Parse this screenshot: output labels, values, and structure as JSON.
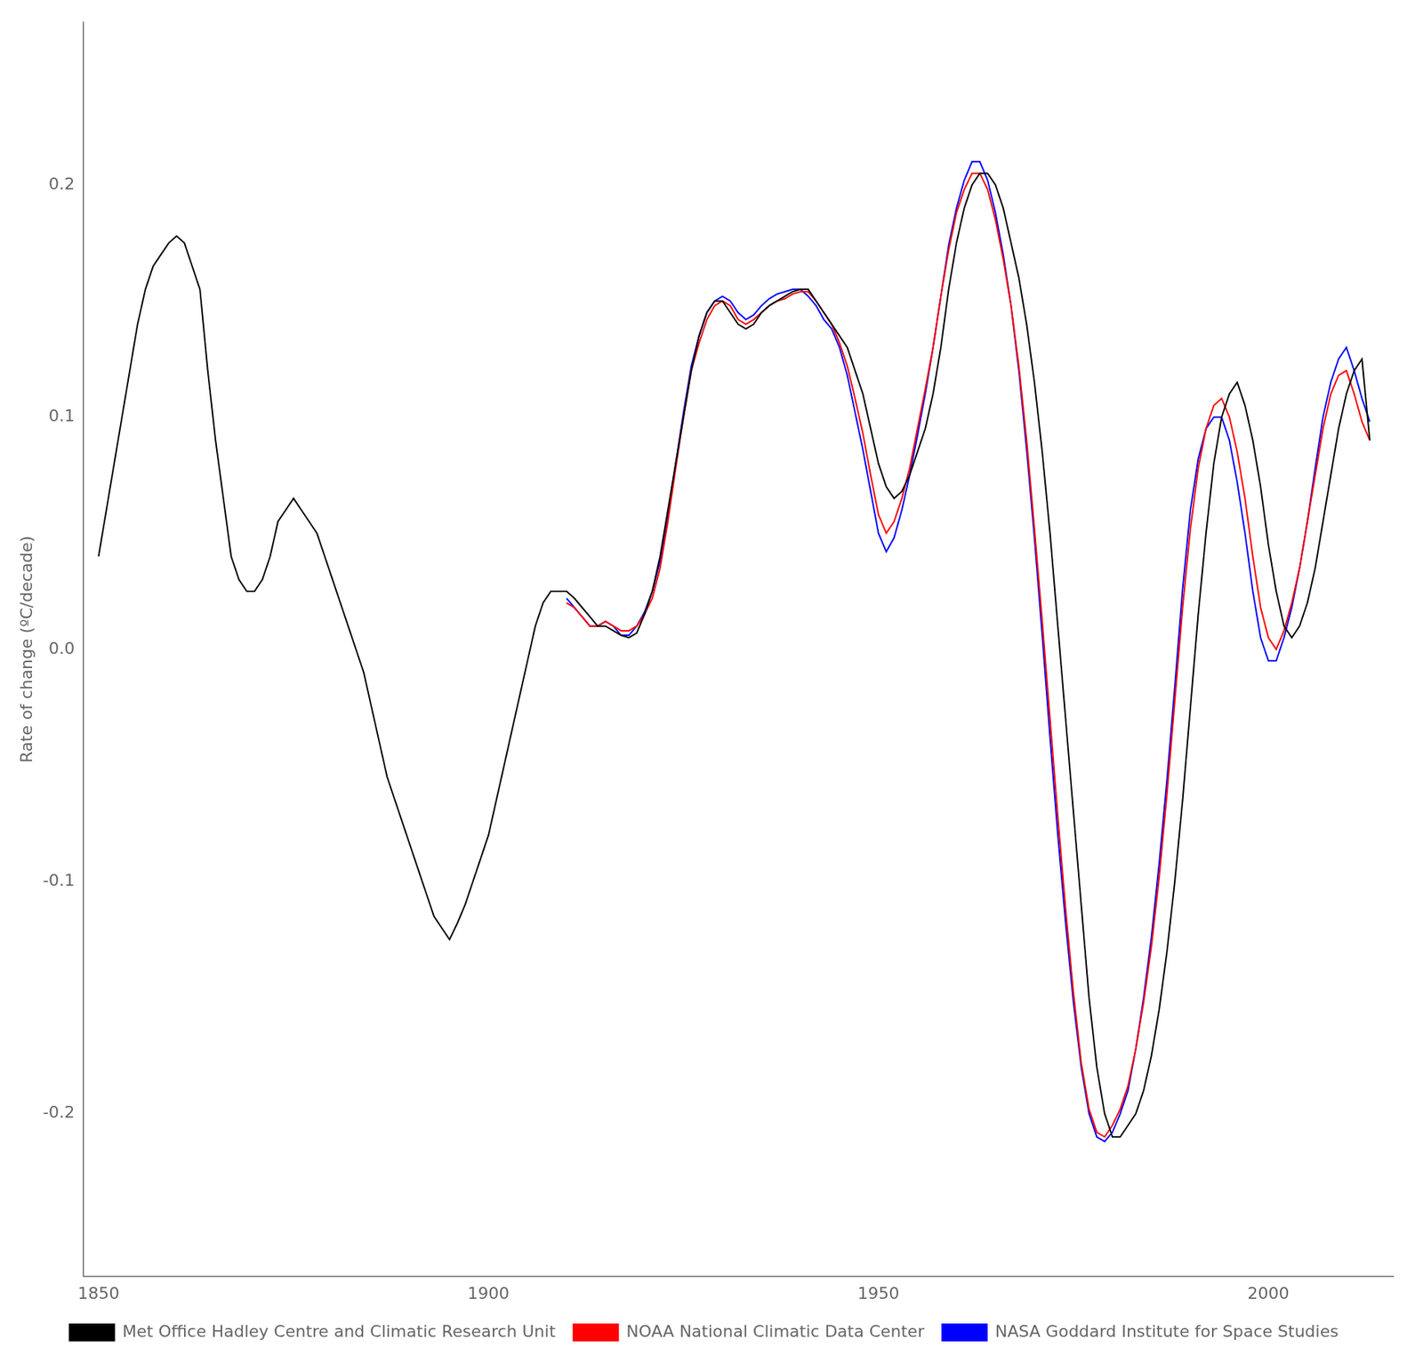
{
  "chart_data": {
    "type": "line",
    "y_label": "Rate of change (ºC/decade)",
    "x": [
      1850,
      1851,
      1852,
      1853,
      1854,
      1855,
      1856,
      1857,
      1858,
      1859,
      1860,
      1861,
      1862,
      1863,
      1864,
      1865,
      1866,
      1867,
      1868,
      1869,
      1870,
      1871,
      1872,
      1873,
      1874,
      1875,
      1876,
      1877,
      1878,
      1879,
      1880,
      1881,
      1882,
      1883,
      1884,
      1885,
      1886,
      1887,
      1888,
      1889,
      1890,
      1891,
      1892,
      1893,
      1894,
      1895,
      1896,
      1897,
      1898,
      1899,
      1900,
      1901,
      1902,
      1903,
      1904,
      1905,
      1906,
      1907,
      1908,
      1909,
      1910,
      1911,
      1912,
      1913,
      1914,
      1915,
      1916,
      1917,
      1918,
      1919,
      1920,
      1921,
      1922,
      1923,
      1924,
      1925,
      1926,
      1927,
      1928,
      1929,
      1930,
      1931,
      1932,
      1933,
      1934,
      1935,
      1936,
      1937,
      1938,
      1939,
      1940,
      1941,
      1942,
      1943,
      1944,
      1945,
      1946,
      1947,
      1948,
      1949,
      1950,
      1951,
      1952,
      1953,
      1954,
      1955,
      1956,
      1957,
      1958,
      1959,
      1960,
      1961,
      1962,
      1963,
      1964,
      1965,
      1966,
      1967,
      1968,
      1969,
      1970,
      1971,
      1972,
      1973,
      1974,
      1975,
      1976,
      1977,
      1978,
      1979,
      1980,
      1981,
      1982,
      1983,
      1984,
      1985,
      1986,
      1987,
      1988,
      1989,
      1990,
      1991,
      1992,
      1993,
      1994,
      1995,
      1996,
      1997,
      1998,
      1999,
      2000,
      2001,
      2002,
      2003,
      2004,
      2005,
      2006,
      2007,
      2008,
      2009,
      2010,
      2011,
      2012,
      2013
    ],
    "series": [
      {
        "name": "Met Office Hadley Centre and Climatic Research Unit",
        "color": "#000000",
        "values": [
          0.04,
          0.06,
          0.08,
          0.1,
          0.12,
          0.14,
          0.155,
          0.165,
          0.17,
          0.175,
          0.178,
          0.175,
          0.165,
          0.155,
          0.12,
          0.09,
          0.065,
          0.04,
          0.03,
          0.025,
          0.025,
          0.03,
          0.04,
          0.055,
          0.06,
          0.065,
          0.06,
          0.055,
          0.05,
          0.04,
          0.03,
          0.02,
          0.01,
          0.0,
          -0.01,
          -0.025,
          -0.04,
          -0.055,
          -0.065,
          -0.075,
          -0.085,
          -0.095,
          -0.105,
          -0.115,
          -0.12,
          -0.125,
          -0.118,
          -0.11,
          -0.1,
          -0.09,
          -0.08,
          -0.065,
          -0.05,
          -0.035,
          -0.02,
          -0.005,
          0.01,
          0.02,
          0.025,
          0.025,
          0.025,
          0.022,
          0.018,
          0.014,
          0.01,
          0.01,
          0.008,
          0.006,
          0.005,
          0.007,
          0.015,
          0.025,
          0.04,
          0.06,
          0.08,
          0.1,
          0.12,
          0.135,
          0.145,
          0.15,
          0.15,
          0.145,
          0.14,
          0.138,
          0.14,
          0.145,
          0.148,
          0.15,
          0.152,
          0.154,
          0.155,
          0.155,
          0.15,
          0.145,
          0.14,
          0.135,
          0.13,
          0.12,
          0.11,
          0.095,
          0.08,
          0.07,
          0.065,
          0.068,
          0.075,
          0.085,
          0.095,
          0.11,
          0.13,
          0.155,
          0.175,
          0.19,
          0.2,
          0.205,
          0.205,
          0.2,
          0.19,
          0.175,
          0.16,
          0.14,
          0.115,
          0.085,
          0.05,
          0.01,
          -0.03,
          -0.07,
          -0.11,
          -0.15,
          -0.18,
          -0.2,
          -0.21,
          -0.21,
          -0.205,
          -0.2,
          -0.19,
          -0.175,
          -0.155,
          -0.13,
          -0.1,
          -0.065,
          -0.025,
          0.015,
          0.05,
          0.08,
          0.1,
          0.11,
          0.115,
          0.105,
          0.09,
          0.07,
          0.045,
          0.025,
          0.01,
          0.005,
          0.01,
          0.02,
          0.035,
          0.055,
          0.075,
          0.095,
          0.11,
          0.12,
          0.125,
          0.09
        ]
      },
      {
        "name": "NOAA National Climatic Data Center",
        "color": "#ff0000",
        "values": [
          null,
          null,
          null,
          null,
          null,
          null,
          null,
          null,
          null,
          null,
          null,
          null,
          null,
          null,
          null,
          null,
          null,
          null,
          null,
          null,
          null,
          null,
          null,
          null,
          null,
          null,
          null,
          null,
          null,
          null,
          null,
          null,
          null,
          null,
          null,
          null,
          null,
          null,
          null,
          null,
          null,
          null,
          null,
          null,
          null,
          null,
          null,
          null,
          null,
          null,
          null,
          null,
          null,
          null,
          null,
          null,
          null,
          null,
          null,
          null,
          0.02,
          0.018,
          0.014,
          0.01,
          0.01,
          0.012,
          0.01,
          0.008,
          0.008,
          0.01,
          0.015,
          0.022,
          0.035,
          0.055,
          0.078,
          0.1,
          0.12,
          0.132,
          0.142,
          0.148,
          0.15,
          0.148,
          0.142,
          0.14,
          0.142,
          0.145,
          0.148,
          0.15,
          0.151,
          0.153,
          0.154,
          0.154,
          0.15,
          0.145,
          0.14,
          0.132,
          0.122,
          0.108,
          0.093,
          0.075,
          0.058,
          0.05,
          0.055,
          0.065,
          0.078,
          0.095,
          0.112,
          0.13,
          0.152,
          0.172,
          0.188,
          0.198,
          0.205,
          0.205,
          0.198,
          0.185,
          0.168,
          0.148,
          0.122,
          0.09,
          0.052,
          0.012,
          -0.03,
          -0.072,
          -0.112,
          -0.148,
          -0.178,
          -0.198,
          -0.208,
          -0.21,
          -0.205,
          -0.198,
          -0.188,
          -0.172,
          -0.152,
          -0.128,
          -0.098,
          -0.062,
          -0.022,
          0.018,
          0.052,
          0.078,
          0.095,
          0.105,
          0.108,
          0.1,
          0.085,
          0.065,
          0.04,
          0.018,
          0.005,
          0.0,
          0.008,
          0.02,
          0.035,
          0.055,
          0.075,
          0.095,
          0.11,
          0.118,
          0.12,
          0.11,
          0.098,
          0.09
        ]
      },
      {
        "name": "NASA Goddard Institute for Space Studies",
        "color": "#0000ff",
        "values": [
          null,
          null,
          null,
          null,
          null,
          null,
          null,
          null,
          null,
          null,
          null,
          null,
          null,
          null,
          null,
          null,
          null,
          null,
          null,
          null,
          null,
          null,
          null,
          null,
          null,
          null,
          null,
          null,
          null,
          null,
          null,
          null,
          null,
          null,
          null,
          null,
          null,
          null,
          null,
          null,
          null,
          null,
          null,
          null,
          null,
          null,
          null,
          null,
          null,
          null,
          null,
          null,
          null,
          null,
          null,
          null,
          null,
          null,
          null,
          null,
          0.022,
          0.018,
          0.014,
          0.01,
          0.01,
          0.012,
          0.01,
          0.006,
          0.006,
          0.01,
          0.016,
          0.025,
          0.038,
          0.058,
          0.08,
          0.102,
          0.122,
          0.135,
          0.145,
          0.15,
          0.152,
          0.15,
          0.145,
          0.142,
          0.144,
          0.148,
          0.151,
          0.153,
          0.154,
          0.155,
          0.155,
          0.152,
          0.148,
          0.142,
          0.138,
          0.13,
          0.118,
          0.102,
          0.086,
          0.068,
          0.05,
          0.042,
          0.048,
          0.06,
          0.075,
          0.092,
          0.11,
          0.13,
          0.152,
          0.174,
          0.19,
          0.202,
          0.21,
          0.21,
          0.202,
          0.188,
          0.17,
          0.148,
          0.12,
          0.086,
          0.048,
          0.006,
          -0.038,
          -0.08,
          -0.118,
          -0.152,
          -0.18,
          -0.2,
          -0.21,
          -0.212,
          -0.208,
          -0.2,
          -0.19,
          -0.172,
          -0.15,
          -0.124,
          -0.092,
          -0.056,
          -0.016,
          0.026,
          0.06,
          0.082,
          0.095,
          0.1,
          0.1,
          0.09,
          0.072,
          0.05,
          0.025,
          0.005,
          -0.005,
          -0.005,
          0.005,
          0.018,
          0.035,
          0.055,
          0.078,
          0.1,
          0.115,
          0.125,
          0.13,
          0.12,
          0.108,
          0.098
        ]
      }
    ],
    "xlim": [
      1848,
      2016
    ],
    "xticks": [
      1850,
      1900,
      1950,
      2000
    ],
    "ylim": [
      -0.27,
      0.27
    ],
    "yticks": [
      -0.2,
      -0.1,
      {
        "value": 0,
        "label": "0.0"
      },
      0.1,
      0.2
    ],
    "grid": false,
    "legend": "bottom"
  }
}
